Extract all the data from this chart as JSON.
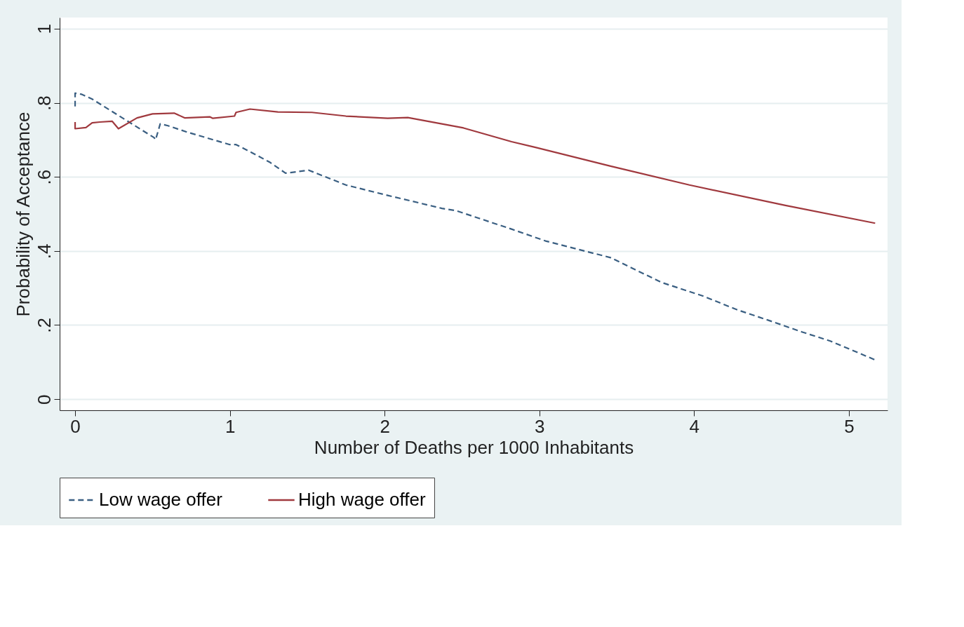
{
  "chart_data": {
    "type": "line",
    "xlabel": "Number of Deaths per 1000 Inhabitants",
    "ylabel": "Probability of Acceptance",
    "xlim": [
      -0.1,
      5.25
    ],
    "ylim": [
      -0.03,
      1.03
    ],
    "xticks": [
      0,
      1,
      2,
      3,
      4,
      5
    ],
    "yticks": [
      0,
      {
        "value": 0.2,
        "label": ".2"
      },
      {
        "value": 0.4,
        "label": ".4"
      },
      {
        "value": 0.6,
        "label": ".6"
      },
      {
        "value": 0.8,
        "label": ".8"
      },
      1
    ],
    "grid": "y",
    "legend": "bottom",
    "marker": "none",
    "series": [
      {
        "name": "Low wage offer",
        "color": "#3a5f82",
        "line_style": "dashed",
        "x": [
          0,
          0,
          0.04,
          0.11,
          0.51,
          0.52,
          0.55,
          0.6,
          0.73,
          1.0,
          1.04,
          1.13,
          1.26,
          1.36,
          1.4,
          1.51,
          1.75,
          2.02,
          2.37,
          2.46,
          2.82,
          3.04,
          3.46,
          3.79,
          4.06,
          4.28,
          4.48,
          4.7,
          4.88,
          5.17
        ],
        "values": [
          0.79,
          0.826,
          0.823,
          0.81,
          0.706,
          0.7,
          0.743,
          0.738,
          0.72,
          0.687,
          0.687,
          0.668,
          0.639,
          0.61,
          0.612,
          0.618,
          0.578,
          0.55,
          0.515,
          0.509,
          0.459,
          0.427,
          0.382,
          0.315,
          0.278,
          0.241,
          0.213,
          0.181,
          0.157,
          0.106
        ]
      },
      {
        "name": "High wage offer",
        "color": "#a0393e",
        "line_style": "solid",
        "x": [
          0,
          0,
          0.07,
          0.11,
          0.16,
          0.24,
          0.28,
          0.4,
          0.5,
          0.64,
          0.71,
          0.87,
          0.89,
          1.03,
          1.04,
          1.13,
          1.31,
          1.53,
          1.75,
          2.02,
          2.15,
          2.37,
          2.51,
          2.82,
          2.97,
          3.46,
          3.97,
          4.59,
          5.17
        ],
        "values": [
          0.748,
          0.73,
          0.733,
          0.746,
          0.748,
          0.75,
          0.73,
          0.759,
          0.77,
          0.772,
          0.759,
          0.762,
          0.758,
          0.764,
          0.774,
          0.783,
          0.775,
          0.774,
          0.764,
          0.758,
          0.76,
          0.743,
          0.732,
          0.695,
          0.68,
          0.629,
          0.578,
          0.523,
          0.475
        ]
      }
    ]
  }
}
